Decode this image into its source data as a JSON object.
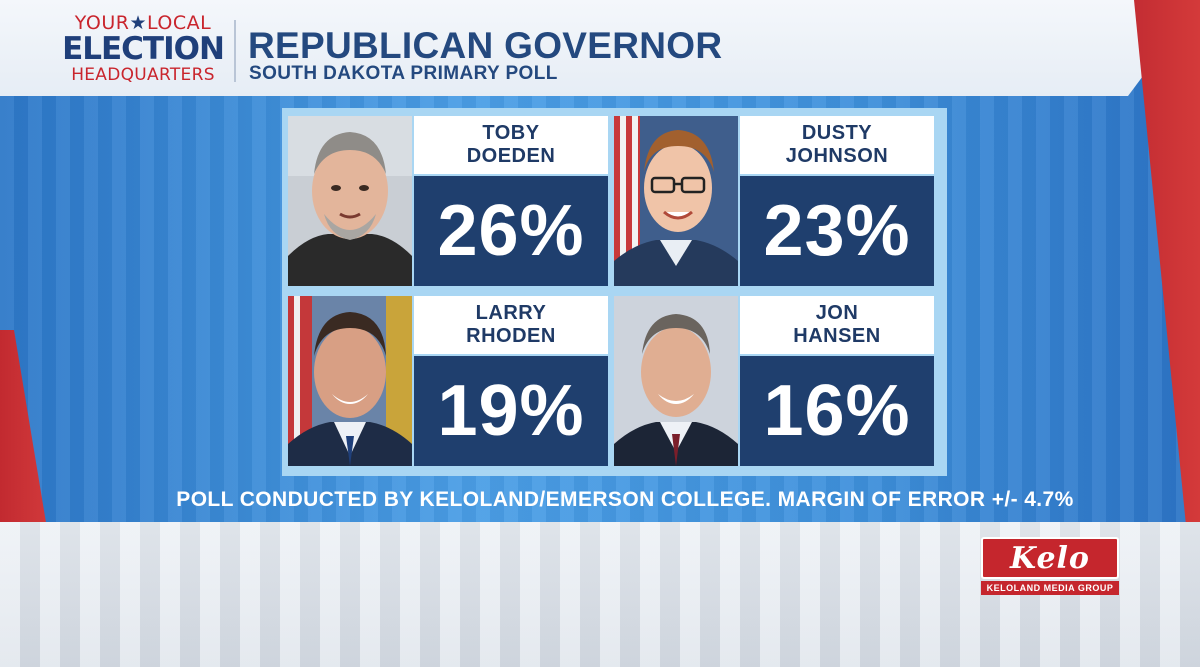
{
  "brand": {
    "logo_top_left": "YOUR",
    "logo_top_right": "LOCAL",
    "logo_middle": "ELECTION",
    "logo_bottom": "HEADQUARTERS",
    "accent_red": "#c9252d",
    "accent_navy": "#1f3f7a"
  },
  "header": {
    "title": "REPUBLICAN GOVERNOR",
    "subtitle": "SOUTH DAKOTA PRIMARY POLL"
  },
  "candidates": [
    {
      "first": "TOBY",
      "last": "DOEDEN",
      "percent": "26%"
    },
    {
      "first": "DUSTY",
      "last": "JOHNSON",
      "percent": "23%"
    },
    {
      "first": "LARRY",
      "last": "RHODEN",
      "percent": "19%"
    },
    {
      "first": "JON",
      "last": "HANSEN",
      "percent": "16%"
    }
  ],
  "footnote": "POLL CONDUCTED BY KELOLAND/EMERSON COLLEGE. MARGIN OF ERROR +/- 4.7%",
  "station": {
    "name": "Kelo",
    "tagline": "KELOLAND MEDIA GROUP"
  }
}
